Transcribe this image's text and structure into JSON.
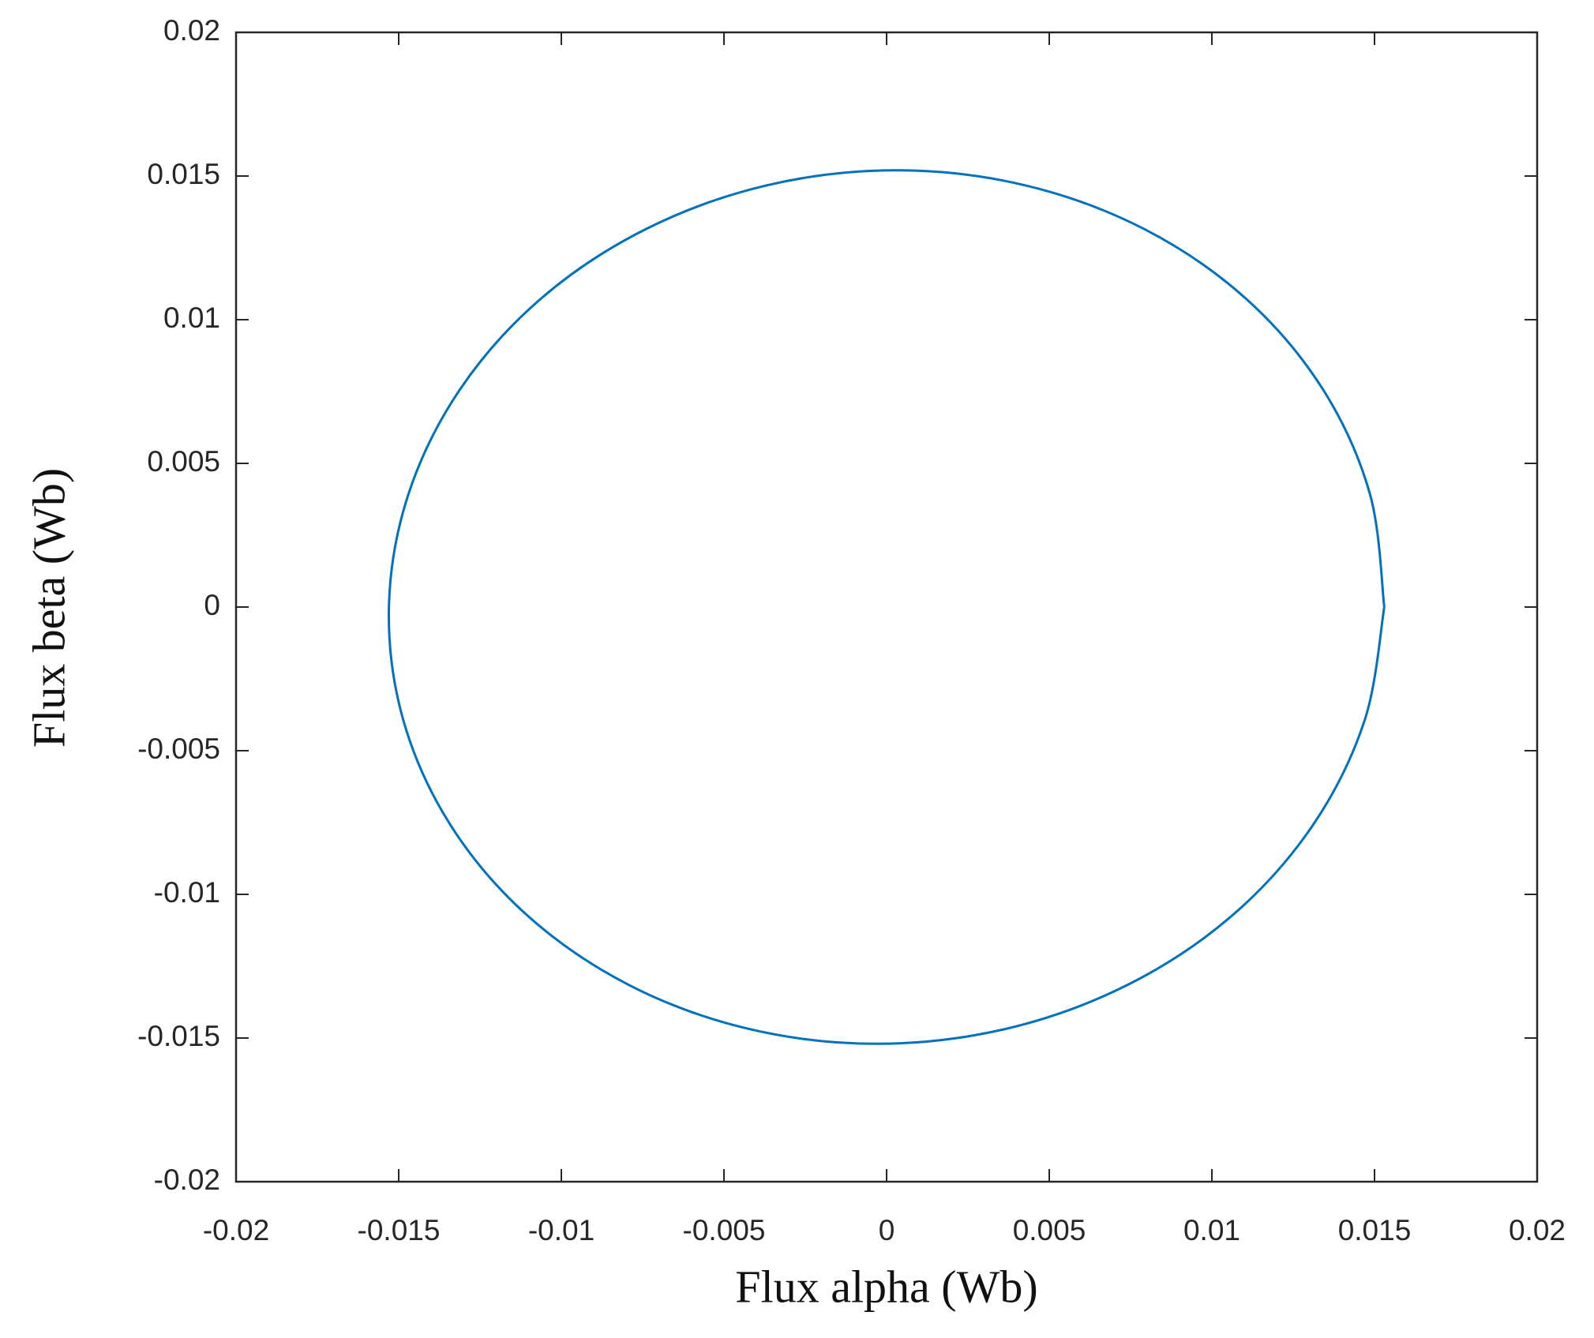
{
  "chart_data": {
    "type": "line",
    "xlabel": "Flux alpha (Wb)",
    "ylabel": "Flux beta (Wb)",
    "x": [
      0.0153,
      0.01486,
      0.0134,
      0.01103,
      0.00791,
      0.00425,
      0.0003,
      -0.00367,
      -0.00739,
      -0.01061,
      -0.0131,
      -0.0147,
      -0.0153,
      -0.01486,
      -0.0134,
      -0.01103,
      -0.00791,
      -0.00425,
      -0.0003,
      0.00367,
      0.00739,
      0.01061,
      0.0131,
      0.0147,
      0.0153
    ],
    "series": [
      {
        "color": "#0072bd",
        "values": [
          0,
          0.00393,
          0.0076,
          0.01075,
          0.01316,
          0.01468,
          0.0152,
          0.01468,
          0.01316,
          0.01075,
          0.0076,
          0.00393,
          0,
          -0.00393,
          -0.0076,
          -0.01075,
          -0.01316,
          -0.01468,
          -0.0152,
          -0.01468,
          -0.01316,
          -0.01075,
          -0.0076,
          -0.00393,
          0
        ]
      }
    ],
    "xlim": [
      -0.02,
      0.02
    ],
    "ylim": [
      -0.02,
      0.02
    ],
    "xticks": [
      -0.02,
      -0.015,
      -0.01,
      -0.005,
      0,
      0.005,
      0.01,
      0.015,
      0.02
    ],
    "yticks": [
      -0.02,
      -0.015,
      -0.01,
      -0.005,
      0,
      0.005,
      0.01,
      0.015,
      0.02
    ],
    "grid": false,
    "ylabel_color": "#5a3000"
  }
}
